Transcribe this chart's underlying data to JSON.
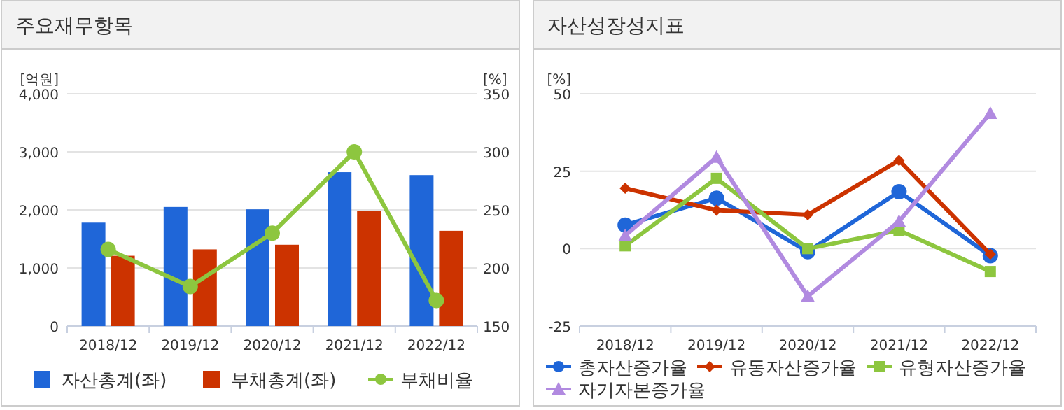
{
  "chart_data": [
    {
      "type": "bar",
      "title": "주요재무항목",
      "ylabel": "[억원]",
      "y2label": "[%]",
      "categories": [
        "2018/12",
        "2019/12",
        "2020/12",
        "2021/12",
        "2022/12"
      ],
      "series": [
        {
          "name": "자산총계(좌)",
          "color": "#1f66d8",
          "values": [
            1780,
            2050,
            2010,
            2650,
            2600
          ]
        },
        {
          "name": "부채총계(좌)",
          "color": "#cc3300",
          "values": [
            1210,
            1320,
            1400,
            1980,
            1640
          ]
        },
        {
          "name": "부채비율",
          "type": "line",
          "axis": "y2",
          "color": "#8dc63f",
          "marker": "circle",
          "values": [
            216,
            184,
            230,
            300,
            172
          ]
        }
      ],
      "ylim": [
        0,
        4000
      ],
      "yticks": [
        0,
        {
          "value": 1000,
          "label": "1,000"
        },
        {
          "value": 2000,
          "label": "2,000"
        },
        {
          "value": 3000,
          "label": "3,000"
        },
        {
          "value": 4000,
          "label": "4,000"
        }
      ],
      "y2lim": [
        150,
        350
      ],
      "y2ticks": [
        150,
        200,
        250,
        300,
        350
      ],
      "grid": "y",
      "legend": "bottom"
    },
    {
      "type": "line",
      "title": "자산성장성지표",
      "ylabel": "[%]",
      "categories": [
        "2018/12",
        "2019/12",
        "2020/12",
        "2021/12",
        "2022/12"
      ],
      "series": [
        {
          "name": "총자산증가율",
          "color": "#1f66d8",
          "marker": "circle",
          "values": [
            7.6,
            16.3,
            -1,
            18.4,
            -2.3
          ]
        },
        {
          "name": "유동자산증가율",
          "color": "#cc3300",
          "marker": "diamond",
          "values": [
            19.5,
            12.4,
            10.9,
            28.5,
            -1.8
          ]
        },
        {
          "name": "유형자산증가율",
          "color": "#8dc63f",
          "marker": "square",
          "values": [
            0.9,
            22.7,
            0,
            5.9,
            -7.4
          ]
        },
        {
          "name": "자기자본증가율",
          "color": "#b18ae0",
          "marker": "triangle",
          "values": [
            4.2,
            29.5,
            -15.4,
            8.8,
            43.7
          ]
        }
      ],
      "ylim": [
        -25,
        50
      ],
      "yticks": [
        -25,
        0,
        25,
        50
      ],
      "grid": "y",
      "legend": "bottom"
    }
  ]
}
